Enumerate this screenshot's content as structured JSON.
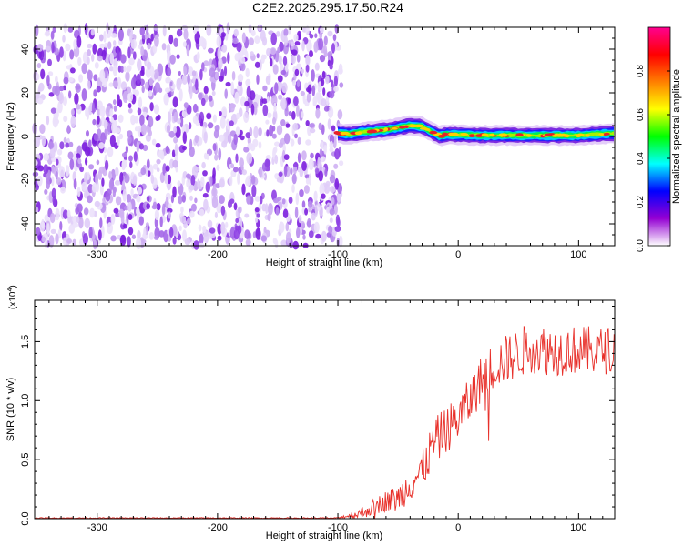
{
  "title": "C2E2.2025.295.17.50.R24",
  "chart_data": [
    {
      "type": "heatmap",
      "xlabel": "Height of straight line (km)",
      "ylabel": "Frequency (Hz)",
      "xlim": [
        -352,
        130
      ],
      "ylim": [
        -50,
        50
      ],
      "xticks": [
        -300,
        -200,
        -100,
        0,
        100
      ],
      "yticks": [
        -40,
        -20,
        0,
        20,
        40
      ],
      "noise_region_x": [
        -352,
        -100
      ],
      "signal_region_x": [
        -100,
        130
      ],
      "signal_center_hz": [
        [
          -100,
          1.5
        ],
        [
          -90,
          1.0
        ],
        [
          -80,
          2.0
        ],
        [
          -70,
          2.5
        ],
        [
          -60,
          3.0
        ],
        [
          -50,
          4.0
        ],
        [
          -40,
          5.0
        ],
        [
          -30,
          4.5
        ],
        [
          -20,
          1.5
        ],
        [
          -15,
          0.2
        ],
        [
          -10,
          1.0
        ],
        [
          0,
          0.8
        ],
        [
          20,
          0.5
        ],
        [
          50,
          0.5
        ],
        [
          100,
          0.5
        ],
        [
          130,
          1.5
        ]
      ],
      "colorbar": {
        "label": "Normalized spectral amplitude",
        "range": [
          0,
          1
        ],
        "ticks": [
          "0.0",
          "0.2",
          "0.4",
          "0.6",
          "0.8"
        ],
        "colors": [
          "#ffffff",
          "#9400d3",
          "#0000ff",
          "#00ffff",
          "#00ff00",
          "#ffff00",
          "#ff7f00",
          "#ff0000",
          "#ff0090"
        ]
      }
    },
    {
      "type": "line",
      "xlabel": "Height of straight line (km)",
      "ylabel": "SNR (10 * v/v)",
      "multiplier": "(x10",
      "multiplier_exp": "4",
      "multiplier_close": ")",
      "xlim": [
        -352,
        130
      ],
      "ylim": [
        0,
        18500
      ],
      "xticks": [
        -300,
        -200,
        -100,
        0,
        100
      ],
      "yticks": [
        {
          "value": 0,
          "label": "0.0"
        },
        {
          "value": 5000,
          "label": "0.5"
        },
        {
          "value": 10000,
          "label": "1.0"
        },
        {
          "value": 15000,
          "label": "1.5"
        }
      ],
      "series": [
        {
          "color": "#e8302a",
          "envelope": [
            [
              -352,
              60
            ],
            [
              -100,
              60
            ],
            [
              -80,
              500
            ],
            [
              -60,
              1500
            ],
            [
              -50,
              1700
            ],
            [
              -40,
              3000
            ],
            [
              -30,
              4000
            ],
            [
              -20,
              6500
            ],
            [
              -10,
              7500
            ],
            [
              0,
              8500
            ],
            [
              10,
              10000
            ],
            [
              20,
              12000
            ],
            [
              30,
              13000
            ],
            [
              40,
              13500
            ],
            [
              50,
              14000
            ],
            [
              60,
              14500
            ],
            [
              80,
              14200
            ],
            [
              100,
              14300
            ],
            [
              120,
              14200
            ],
            [
              130,
              14400
            ]
          ],
          "noise_amplitude": [
            [
              -352,
              40
            ],
            [
              -100,
              40
            ],
            [
              -80,
              500
            ],
            [
              -60,
              900
            ],
            [
              -40,
              1500
            ],
            [
              -20,
              2000
            ],
            [
              0,
              2000
            ],
            [
              20,
              2000
            ],
            [
              60,
              2200
            ],
            [
              130,
              2000
            ]
          ]
        }
      ]
    }
  ]
}
